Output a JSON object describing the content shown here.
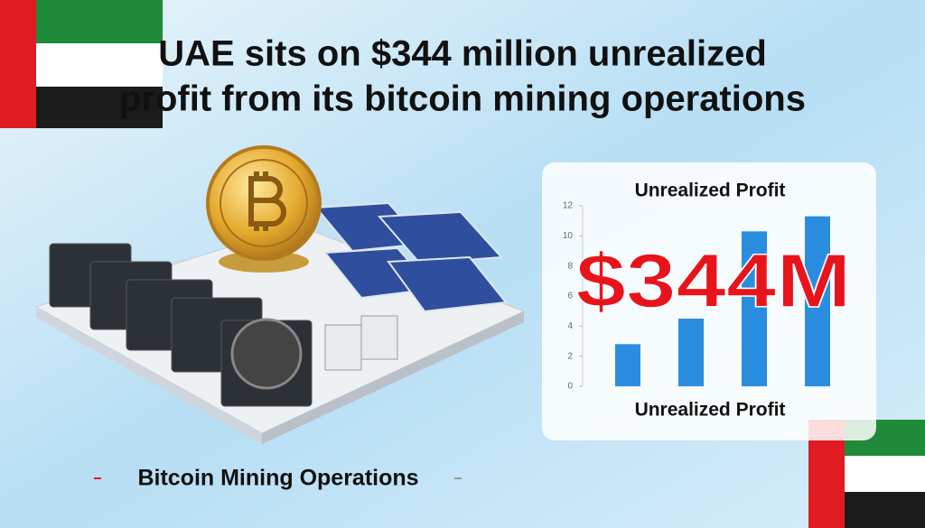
{
  "headline": [
    "UAE sits on $344 million unrealized",
    "profit from its bitcoin mining operations"
  ],
  "caption": "Bitcoin Mining Operations",
  "chart_data": {
    "type": "bar",
    "title": "Unrealized Profit",
    "x_label": "Unrealized Profit",
    "annotation": "$344M",
    "categories": [
      null,
      null,
      null,
      null
    ],
    "values": [
      2.8,
      4.5,
      10.3,
      11.3
    ],
    "color": "#2b8de0",
    "ylim": [
      0,
      12
    ],
    "yticks": [
      0,
      2,
      4,
      6,
      8,
      10,
      12
    ],
    "grid": false
  }
}
